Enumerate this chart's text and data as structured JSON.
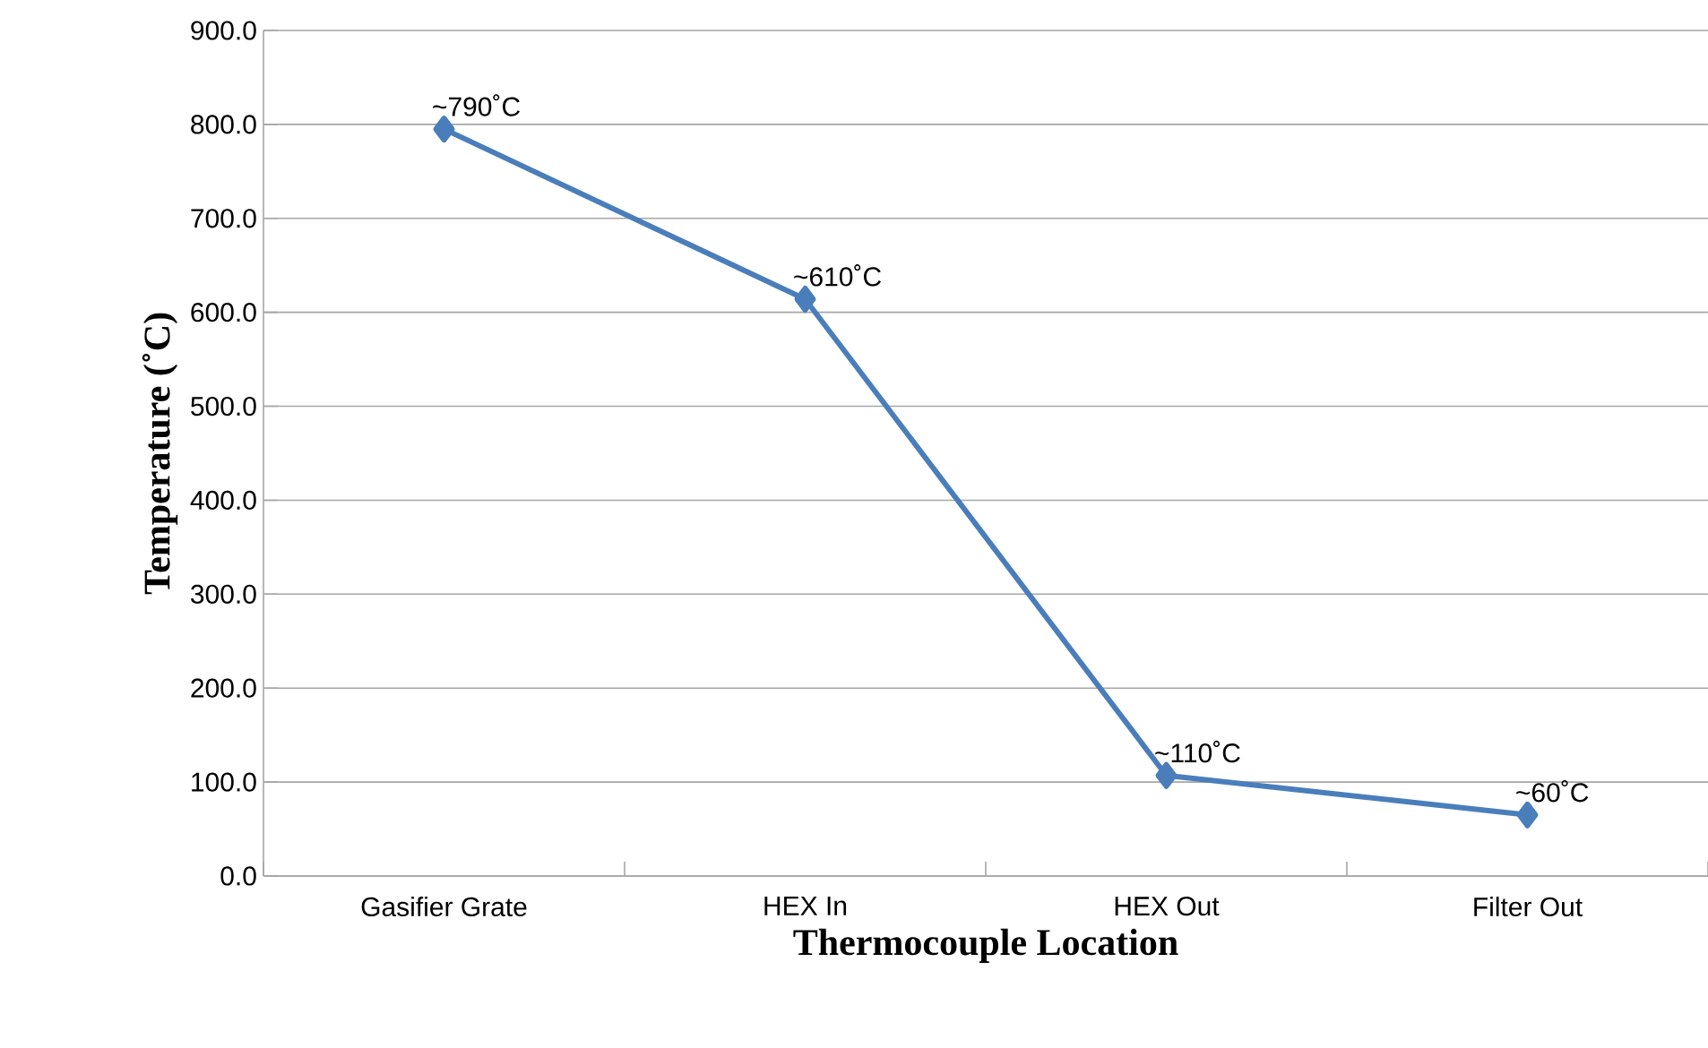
{
  "chart_data": {
    "type": "line",
    "xlabel": "Thermocouple Location",
    "ylabel": "Temperature (˚C)",
    "categories": [
      "Gasifier Grate",
      "HEX In",
      "HEX Out",
      "Filter Out"
    ],
    "values": [
      795,
      614,
      107,
      65
    ],
    "color": "#4a7ebb",
    "marker": "diamond",
    "line_style": "solid",
    "grid": "y",
    "ylim": [
      0,
      900
    ],
    "yticks": [
      {
        "value": 0,
        "label": "0.0"
      },
      {
        "value": 100,
        "label": "100.0"
      },
      {
        "value": 200,
        "label": "200.0"
      },
      {
        "value": 300,
        "label": "300.0"
      },
      {
        "value": 400,
        "label": "400.0"
      },
      {
        "value": 500,
        "label": "500.0"
      },
      {
        "value": 600,
        "label": "600.0"
      },
      {
        "value": 700,
        "label": "700.0"
      },
      {
        "value": 800,
        "label": "800.0"
      },
      {
        "value": 900,
        "label": "900.0"
      }
    ],
    "annotations": [
      {
        "text": "~790˚C",
        "x": "Gasifier Grate",
        "y": 795
      },
      {
        "text": "~610˚C",
        "x": "HEX In",
        "y": 614
      },
      {
        "text": "~110˚C",
        "x": "HEX Out",
        "y": 107
      },
      {
        "text": "~60˚C",
        "x": "Filter Out",
        "y": 65
      }
    ]
  }
}
